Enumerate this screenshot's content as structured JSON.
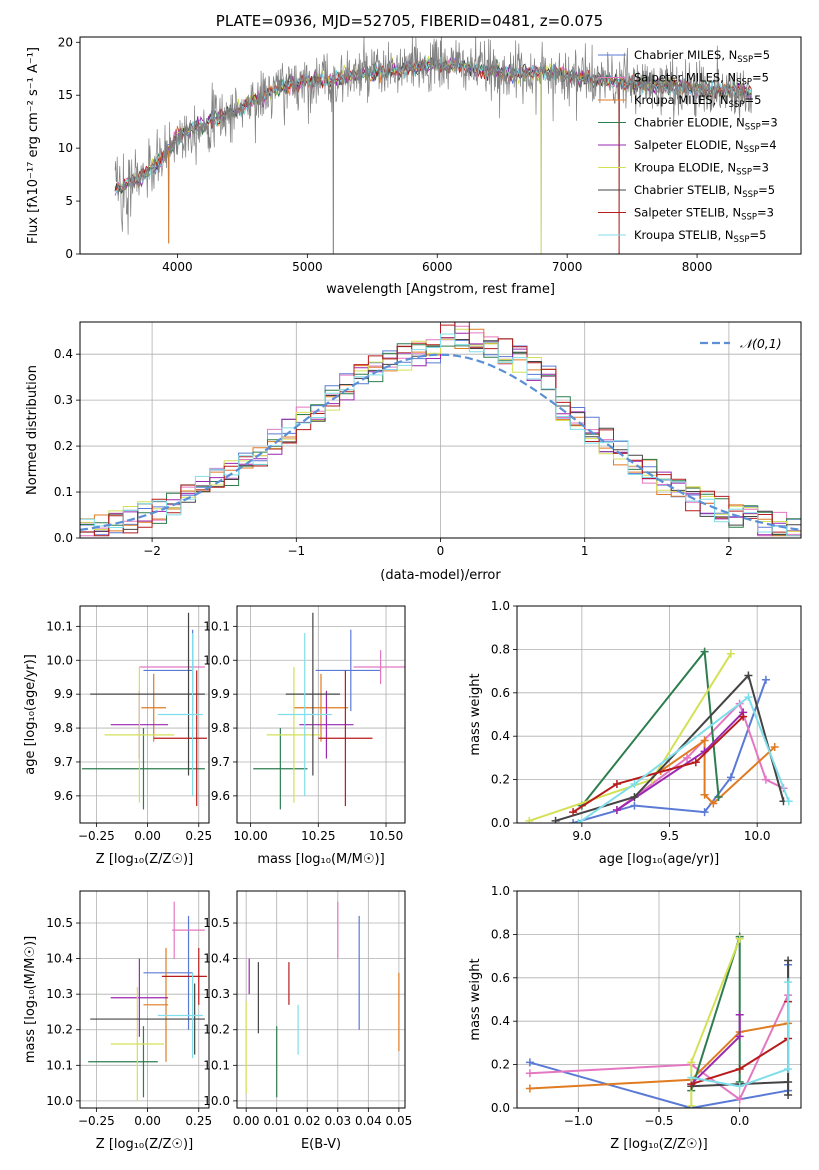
{
  "figure_title": "PLATE=0936, MJD=52705, FIBERID=0481, z=0.075",
  "colors": {
    "Chabrier MILES": "#5b7ad6",
    "Salpeter MILES": "#e377c2",
    "Kroupa MILES": "#e07b22",
    "Chabrier ELODIE": "#2e7d4f",
    "Salpeter ELODIE": "#9c27b0",
    "Kroupa ELODIE": "#d4e157",
    "Chabrier STELIB": "#444444",
    "Salpeter STELIB": "#b71c1c",
    "Kroupa STELIB": "#80deea",
    "normal": "#5b8fd6",
    "data": "#808080"
  },
  "chart_data": [
    {
      "id": "spectrum",
      "type": "line",
      "xlabel": "wavelength [Angstrom, rest frame]",
      "ylabel": "Flux [f$_\\lambda$10$^{-17}$ erg cm$^{-2}$ s$^{-1}$ A$^{-1}$]",
      "ylabel_text": "Flux [fλ10⁻¹⁷ erg cm⁻² s⁻¹ A⁻¹]",
      "xlim": [
        3250,
        8800
      ],
      "ylim": [
        0,
        20.5
      ],
      "xticks": [
        4000,
        5000,
        6000,
        7000,
        8000
      ],
      "yticks": [
        0,
        5,
        10,
        15,
        20
      ],
      "legend": [
        "Chabrier MILES, N$_{SSP}$=5",
        "Salpeter MILES, N$_{SSP}$=5",
        "Kroupa MILES, N$_{SSP}$=5",
        "Chabrier ELODIE, N$_{SSP}$=3",
        "Salpeter ELODIE, N$_{SSP}$=4",
        "Kroupa ELODIE, N$_{SSP}$=3",
        "Chabrier STELIB, N$_{SSP}$=5",
        "Salpeter STELIB, N$_{SSP}$=3",
        "Kroupa STELIB, N$_{SSP}$=5"
      ],
      "legend_labels": [
        "Chabrier MILES, N",
        "Salpeter MILES, N",
        "Kroupa MILES, N",
        "Chabrier ELODIE, N",
        "Salpeter ELODIE, N",
        "Kroupa ELODIE, N",
        "Chabrier STELIB, N",
        "Salpeter STELIB, N",
        "Kroupa STELIB, N"
      ],
      "legend_sub": "SSP",
      "legend_values": [
        "=5",
        "=5",
        "=5",
        "=3",
        "=4",
        "=3",
        "=5",
        "=3",
        "=5"
      ],
      "legend_placement": "top-right",
      "continuum": {
        "x": [
          3520,
          3600,
          3700,
          3800,
          3900,
          4000,
          4100,
          4200,
          4400,
          4600,
          4800,
          5000,
          5200,
          5400,
          5600,
          5800,
          6000,
          6200,
          6400,
          6600,
          6800,
          7000,
          7200,
          7400,
          7600,
          7800,
          8000,
          8200,
          8400
        ],
        "y": [
          6.0,
          6.5,
          7.2,
          8.0,
          9.2,
          11.0,
          11.8,
          12.3,
          13.2,
          14.5,
          15.8,
          16.3,
          16.5,
          17.0,
          17.2,
          17.6,
          17.9,
          17.8,
          17.3,
          17.0,
          17.2,
          16.9,
          16.5,
          16.2,
          16.0,
          15.8,
          15.6,
          15.5,
          15.2
        ]
      },
      "dips": [
        {
          "x": 3933,
          "y": 1.0
        },
        {
          "x": 5200,
          "y": 0.0
        },
        {
          "x": 6800,
          "y": 0.0
        },
        {
          "x": 7400,
          "y": 0.0
        }
      ],
      "grid": false
    },
    {
      "id": "residuals",
      "type": "histogram",
      "xlabel": "(data-model)/error",
      "ylabel": "Normed distribution",
      "xlim": [
        -2.5,
        2.5
      ],
      "ylim": [
        0,
        0.47
      ],
      "xticks": [
        -2,
        -1,
        0,
        1,
        2
      ],
      "xticklabels": [
        "−2",
        "−1",
        "0",
        "1",
        "2"
      ],
      "yticks": [
        0.0,
        0.1,
        0.2,
        0.3,
        0.4
      ],
      "yticklabels": [
        "0.0",
        "0.1",
        "0.2",
        "0.3",
        "0.4"
      ],
      "bin_width": 0.1,
      "normal_label": "𝒩(0,1)",
      "legend_placement": "top-right",
      "grid": true
    },
    {
      "id": "age_vs_Z",
      "type": "errorbar",
      "xlabel": "Z [log₁₀(Z/Z☉)]",
      "ylabel": "age  [log₁₀(age/yr)]",
      "xlim": [
        -0.33,
        0.3
      ],
      "ylim": [
        9.52,
        10.16
      ],
      "xticks": [
        -0.25,
        0.0,
        0.25
      ],
      "xticklabels": [
        "−0.25",
        "0.00",
        "0.25"
      ],
      "yticks": [
        9.6,
        9.7,
        9.8,
        9.9,
        10.0,
        10.1
      ],
      "yticklabels": [
        "9.6",
        "9.7",
        "9.8",
        "9.9",
        "10.0",
        "10.1"
      ],
      "points": [
        {
          "series": "Chabrier MILES",
          "x": 0.1,
          "xerr": 0.12,
          "y": 9.97,
          "yerr": 0.12,
          "xc": 0.22
        },
        {
          "series": "Salpeter MILES",
          "x": 0.12,
          "xerr": 0.16,
          "y": 9.98,
          "yerr": 0.02,
          "xc": 0.22
        },
        {
          "series": "Kroupa MILES",
          "x": 0.03,
          "xerr": 0.06,
          "y": 9.86,
          "yerr": 0.1,
          "xc": 0.03
        },
        {
          "series": "Chabrier ELODIE",
          "x": -0.02,
          "xerr": 0.3,
          "y": 9.68,
          "yerr": 0.12,
          "xc": -0.02
        },
        {
          "series": "Salpeter ELODIE",
          "x": -0.04,
          "xerr": 0.14,
          "y": 9.81,
          "yerr": 0.1,
          "xc": -0.04
        },
        {
          "series": "Kroupa ELODIE",
          "x": -0.04,
          "xerr": 0.17,
          "y": 9.78,
          "yerr": 0.2,
          "xc": -0.04
        },
        {
          "series": "Chabrier STELIB",
          "x": 0.0,
          "xerr": 0.28,
          "y": 9.9,
          "yerr": 0.24,
          "xc": 0.2
        },
        {
          "series": "Salpeter STELIB",
          "x": 0.16,
          "xerr": 0.13,
          "y": 9.77,
          "yerr": 0.2,
          "xc": 0.24
        },
        {
          "series": "Kroupa STELIB",
          "x": 0.16,
          "xerr": 0.11,
          "y": 9.84,
          "yerr": 0.24,
          "xc": 0.22
        }
      ],
      "grid": true
    },
    {
      "id": "age_vs_mass",
      "type": "errorbar",
      "xlabel": "mass [log₁₀(M/M☉)]",
      "ylabel": "",
      "xlim": [
        9.95,
        10.57
      ],
      "ylim": [
        9.52,
        10.16
      ],
      "xticks": [
        10.0,
        10.25,
        10.5
      ],
      "xticklabels": [
        "10.00",
        "10.25",
        "10.50"
      ],
      "yticks": [
        9.6,
        9.7,
        9.8,
        9.9,
        10.0,
        10.1
      ],
      "yticklabels": [
        "9.6",
        "9.7",
        "9.8",
        "9.9",
        "10.0",
        "10.1"
      ],
      "points": [
        {
          "series": "Chabrier MILES",
          "x": 10.36,
          "xerr": 0.12,
          "y": 9.97,
          "yerr": 0.12,
          "xc": 10.37
        },
        {
          "series": "Salpeter MILES",
          "x": 10.48,
          "xerr": 0.1,
          "y": 9.98,
          "yerr": 0.05,
          "xc": 10.48
        },
        {
          "series": "Kroupa MILES",
          "x": 10.26,
          "xerr": 0.1,
          "y": 9.86,
          "yerr": 0.1,
          "xc": 10.26
        },
        {
          "series": "Chabrier ELODIE",
          "x": 10.11,
          "xerr": 0.1,
          "y": 9.68,
          "yerr": 0.12,
          "xc": 10.11
        },
        {
          "series": "Salpeter ELODIE",
          "x": 10.28,
          "xerr": 0.1,
          "y": 9.81,
          "yerr": 0.1,
          "xc": 10.28
        },
        {
          "series": "Kroupa ELODIE",
          "x": 10.16,
          "xerr": 0.1,
          "y": 9.78,
          "yerr": 0.2,
          "xc": 10.16
        },
        {
          "series": "Chabrier STELIB",
          "x": 10.23,
          "xerr": 0.1,
          "y": 9.9,
          "yerr": 0.24,
          "xc": 10.23
        },
        {
          "series": "Salpeter STELIB",
          "x": 10.35,
          "xerr": 0.1,
          "y": 9.77,
          "yerr": 0.2,
          "xc": 10.35
        },
        {
          "series": "Kroupa STELIB",
          "x": 10.2,
          "xerr": 0.1,
          "y": 9.84,
          "yerr": 0.24,
          "xc": 10.2
        }
      ],
      "grid": true
    },
    {
      "id": "weight_vs_age",
      "type": "line",
      "xlabel": "age  [log₁₀(age/yr)]",
      "ylabel": "mass weight",
      "xlim": [
        8.63,
        10.25
      ],
      "ylim": [
        0,
        1.0
      ],
      "xticks": [
        9.0,
        9.5,
        10.0
      ],
      "xticklabels": [
        "9.0",
        "9.5",
        "10.0"
      ],
      "yticks": [
        0.0,
        0.2,
        0.4,
        0.6,
        0.8,
        1.0
      ],
      "yticklabels": [
        "0.0",
        "0.2",
        "0.4",
        "0.6",
        "0.8",
        "1.0"
      ],
      "series": [
        {
          "name": "Chabrier MILES",
          "x": [
            8.95,
            9.3,
            9.7,
            9.85,
            10.05
          ],
          "y": [
            0.0,
            0.08,
            0.05,
            0.21,
            0.66
          ]
        },
        {
          "name": "Salpeter MILES",
          "x": [
            9.2,
            9.6,
            9.9,
            10.05,
            10.15
          ],
          "y": [
            0.06,
            0.3,
            0.55,
            0.2,
            0.16
          ]
        },
        {
          "name": "Kroupa MILES",
          "x": [
            9.45,
            9.7,
            9.7,
            9.75,
            10.1
          ],
          "y": [
            0.24,
            0.38,
            0.13,
            0.09,
            0.35
          ]
        },
        {
          "name": "Chabrier ELODIE",
          "x": [
            9.0,
            9.7,
            9.78
          ],
          "y": [
            0.08,
            0.79,
            0.12
          ]
        },
        {
          "name": "Salpeter ELODIE",
          "x": [
            9.2,
            9.7,
            9.92
          ],
          "y": [
            0.06,
            0.33,
            0.51
          ]
        },
        {
          "name": "Kroupa ELODIE",
          "x": [
            8.7,
            9.4,
            9.85
          ],
          "y": [
            0.01,
            0.2,
            0.78
          ]
        },
        {
          "name": "Chabrier STELIB",
          "x": [
            8.85,
            9.3,
            9.95,
            10.15
          ],
          "y": [
            0.01,
            0.12,
            0.68,
            0.1
          ]
        },
        {
          "name": "Salpeter STELIB",
          "x": [
            8.95,
            9.2,
            9.65,
            9.92
          ],
          "y": [
            0.05,
            0.18,
            0.28,
            0.49
          ]
        },
        {
          "name": "Kroupa STELIB",
          "x": [
            8.98,
            9.3,
            9.95,
            10.18
          ],
          "y": [
            0.0,
            0.18,
            0.58,
            0.1
          ]
        }
      ],
      "grid": true
    },
    {
      "id": "mass_vs_Z",
      "type": "errorbar",
      "xlabel": "Z [log₁₀(Z/Z☉)]",
      "ylabel": "mass [log₁₀(M/M☉)]",
      "xlim": [
        -0.33,
        0.3
      ],
      "ylim": [
        9.98,
        10.59
      ],
      "xticks": [
        -0.25,
        0.0,
        0.25
      ],
      "xticklabels": [
        "−0.25",
        "0.00",
        "0.25"
      ],
      "yticks": [
        10.0,
        10.1,
        10.2,
        10.3,
        10.4,
        10.5
      ],
      "yticklabels": [
        "10.0",
        "10.1",
        "10.2",
        "10.3",
        "10.4",
        "10.5"
      ],
      "points": [
        {
          "series": "Chabrier MILES",
          "x": 0.1,
          "xerr": 0.12,
          "y": 10.36,
          "yerr": 0.16,
          "xc": 0.2
        },
        {
          "series": "Salpeter MILES",
          "x": 0.2,
          "xerr": 0.08,
          "y": 10.48,
          "yerr": 0.08,
          "xc": 0.13
        },
        {
          "series": "Kroupa MILES",
          "x": 0.04,
          "xerr": 0.06,
          "y": 10.27,
          "yerr": 0.16,
          "xc": 0.09
        },
        {
          "series": "Chabrier ELODIE",
          "x": -0.12,
          "xerr": 0.17,
          "y": 10.11,
          "yerr": 0.1,
          "xc": -0.02
        },
        {
          "series": "Salpeter ELODIE",
          "x": -0.04,
          "xerr": 0.14,
          "y": 10.29,
          "yerr": 0.11,
          "xc": -0.04
        },
        {
          "series": "Kroupa ELODIE",
          "x": -0.05,
          "xerr": 0.13,
          "y": 10.16,
          "yerr": 0.16,
          "xc": -0.05
        },
        {
          "series": "Chabrier STELIB",
          "x": 0.0,
          "xerr": 0.28,
          "y": 10.23,
          "yerr": 0.1,
          "xc": 0.23
        },
        {
          "series": "Salpeter STELIB",
          "x": 0.18,
          "xerr": 0.11,
          "y": 10.35,
          "yerr": 0.08,
          "xc": 0.25
        },
        {
          "series": "Kroupa STELIB",
          "x": 0.16,
          "xerr": 0.11,
          "y": 10.24,
          "yerr": 0.12,
          "xc": 0.22
        }
      ],
      "grid": true
    },
    {
      "id": "mass_vs_EBV",
      "type": "errorbar",
      "xlabel": "E(B-V)",
      "ylabel": "",
      "xlim": [
        -0.003,
        0.052
      ],
      "ylim": [
        9.98,
        10.59
      ],
      "xticks": [
        0.0,
        0.01,
        0.02,
        0.03,
        0.04,
        0.05
      ],
      "xticklabels": [
        "0.00",
        "0.01",
        "0.02",
        "0.03",
        "0.04",
        "0.05"
      ],
      "yticks": [
        10.0,
        10.1,
        10.2,
        10.3,
        10.4,
        10.5
      ],
      "yticklabels": [
        "10.0",
        "10.1",
        "10.2",
        "10.3",
        "10.4",
        "10.5"
      ],
      "points": [
        {
          "series": "Chabrier MILES",
          "x": 0.037,
          "xerr": 0,
          "y": 10.36,
          "yerr": 0.16
        },
        {
          "series": "Salpeter MILES",
          "x": 0.03,
          "xerr": 0,
          "y": 10.48,
          "yerr": 0.08
        },
        {
          "series": "Kroupa MILES",
          "x": 0.05,
          "xerr": 0,
          "y": 10.25,
          "yerr": 0.11
        },
        {
          "series": "Chabrier ELODIE",
          "x": 0.01,
          "xerr": 0,
          "y": 10.11,
          "yerr": 0.1
        },
        {
          "series": "Salpeter ELODIE",
          "x": 0.001,
          "xerr": 0,
          "y": 10.35,
          "yerr": 0.05
        },
        {
          "series": "Kroupa ELODIE",
          "x": 0.0,
          "xerr": 0,
          "y": 10.15,
          "yerr": 0.13
        },
        {
          "series": "Chabrier STELIB",
          "x": 0.004,
          "xerr": 0,
          "y": 10.29,
          "yerr": 0.1
        },
        {
          "series": "Salpeter STELIB",
          "x": 0.014,
          "xerr": 0,
          "y": 10.33,
          "yerr": 0.06
        },
        {
          "series": "Kroupa STELIB",
          "x": 0.017,
          "xerr": 0,
          "y": 10.2,
          "yerr": 0.07
        }
      ],
      "grid": true
    },
    {
      "id": "weight_vs_Z",
      "type": "line",
      "xlabel": "Z [log₁₀(Z/Z☉)]",
      "ylabel": "mass weight",
      "xlim": [
        -1.38,
        0.38
      ],
      "ylim": [
        0,
        1.0
      ],
      "xticks": [
        -1.0,
        -0.5,
        0.0
      ],
      "xticklabels": [
        "−1.0",
        "−0.5",
        "0.0"
      ],
      "yticks": [
        0.0,
        0.2,
        0.4,
        0.6,
        0.8,
        1.0
      ],
      "yticklabels": [
        "0.0",
        "0.2",
        "0.4",
        "0.6",
        "0.8",
        "1.0"
      ],
      "series": [
        {
          "name": "Chabrier MILES",
          "x": [
            -1.3,
            -0.3,
            0.3,
            0.3
          ],
          "y": [
            0.21,
            0.0,
            0.08,
            0.66
          ]
        },
        {
          "name": "Salpeter MILES",
          "x": [
            -1.3,
            -0.3,
            0.0,
            0.3
          ],
          "y": [
            0.16,
            0.2,
            0.04,
            0.52
          ]
        },
        {
          "name": "Kroupa MILES",
          "x": [
            -1.3,
            -0.3,
            0.0,
            0.3
          ],
          "y": [
            0.09,
            0.13,
            0.35,
            0.39
          ]
        },
        {
          "name": "Chabrier ELODIE",
          "x": [
            -0.3,
            0.0,
            0.0
          ],
          "y": [
            0.08,
            0.79,
            0.12
          ]
        },
        {
          "name": "Salpeter ELODIE",
          "x": [
            -0.3,
            0.0,
            0.0
          ],
          "y": [
            0.11,
            0.33,
            0.43
          ]
        },
        {
          "name": "Kroupa ELODIE",
          "x": [
            -0.3,
            -0.3,
            0.0
          ],
          "y": [
            0.01,
            0.21,
            0.78
          ]
        },
        {
          "name": "Chabrier STELIB",
          "x": [
            -0.3,
            0.3,
            0.3,
            0.3
          ],
          "y": [
            0.1,
            0.12,
            0.68,
            0.06
          ]
        },
        {
          "name": "Salpeter STELIB",
          "x": [
            -0.3,
            0.0,
            0.3,
            0.3
          ],
          "y": [
            0.11,
            0.18,
            0.32,
            0.49
          ]
        },
        {
          "name": "Kroupa STELIB",
          "x": [
            -0.3,
            0.0,
            0.3,
            0.3
          ],
          "y": [
            0.14,
            0.1,
            0.18,
            0.58
          ]
        }
      ],
      "grid": true
    }
  ]
}
